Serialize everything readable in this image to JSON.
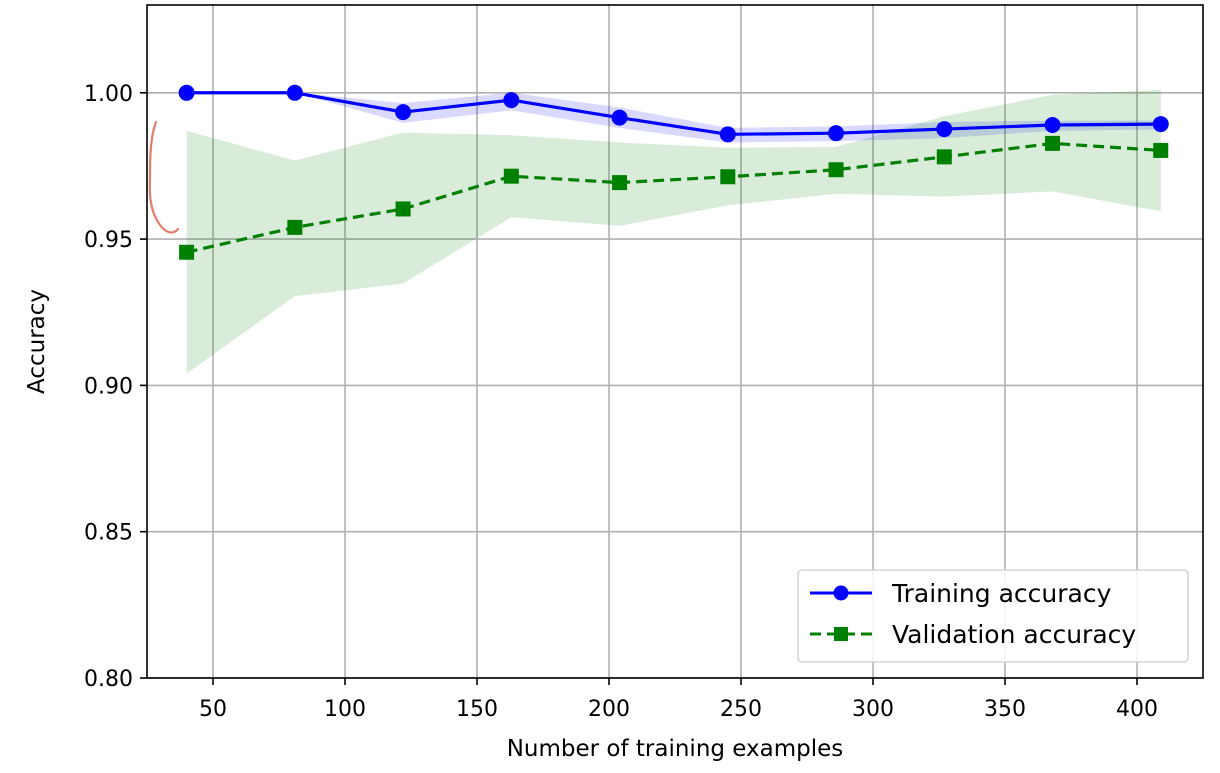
{
  "chart_data": {
    "type": "line",
    "title": "",
    "xlabel": "Number of training examples",
    "ylabel": "Accuracy",
    "xlim": [
      25,
      425
    ],
    "ylim": [
      0.8,
      1.03
    ],
    "xticks": [
      50,
      100,
      150,
      200,
      250,
      300,
      350,
      400
    ],
    "xtick_labels": [
      "50",
      "100",
      "150",
      "200",
      "250",
      "300",
      "350",
      "400"
    ],
    "yticks": [
      0.8,
      0.85,
      0.9,
      0.95,
      1.0
    ],
    "ytick_labels": [
      "0.80",
      "0.85",
      "0.90",
      "0.95",
      "1.00"
    ],
    "grid": true,
    "legend_position": "lower-right",
    "x": [
      40,
      81,
      122,
      163,
      204,
      245,
      286,
      327,
      368,
      409
    ],
    "series": [
      {
        "name": "Training accuracy",
        "color": "#0000ff",
        "marker": "circle",
        "linestyle": "solid",
        "values": [
          1.0,
          1.0,
          0.9934,
          0.9975,
          0.9915,
          0.9858,
          0.9862,
          0.9876,
          0.989,
          0.9893
        ],
        "band_lower": [
          1.0,
          1.0,
          0.9897,
          0.994,
          0.988,
          0.983,
          0.9835,
          0.9845,
          0.987,
          0.9875
        ],
        "band_upper": [
          1.0,
          1.0,
          0.9965,
          1.0,
          0.995,
          0.988,
          0.9885,
          0.99,
          0.9905,
          0.9905
        ],
        "band_color": "#0000ff"
      },
      {
        "name": "Validation accuracy",
        "color": "#008000",
        "marker": "square",
        "linestyle": "dashed",
        "values": [
          0.9455,
          0.954,
          0.9603,
          0.9715,
          0.9693,
          0.9713,
          0.9737,
          0.9781,
          0.9827,
          0.9803
        ],
        "band_lower": [
          0.904,
          0.9305,
          0.9348,
          0.9575,
          0.9545,
          0.9615,
          0.9655,
          0.9645,
          0.9663,
          0.9595
        ],
        "band_upper": [
          0.987,
          0.9768,
          0.9864,
          0.9855,
          0.983,
          0.9812,
          0.9815,
          0.992,
          0.9993,
          1.001
        ],
        "band_color": "#008000"
      }
    ]
  }
}
